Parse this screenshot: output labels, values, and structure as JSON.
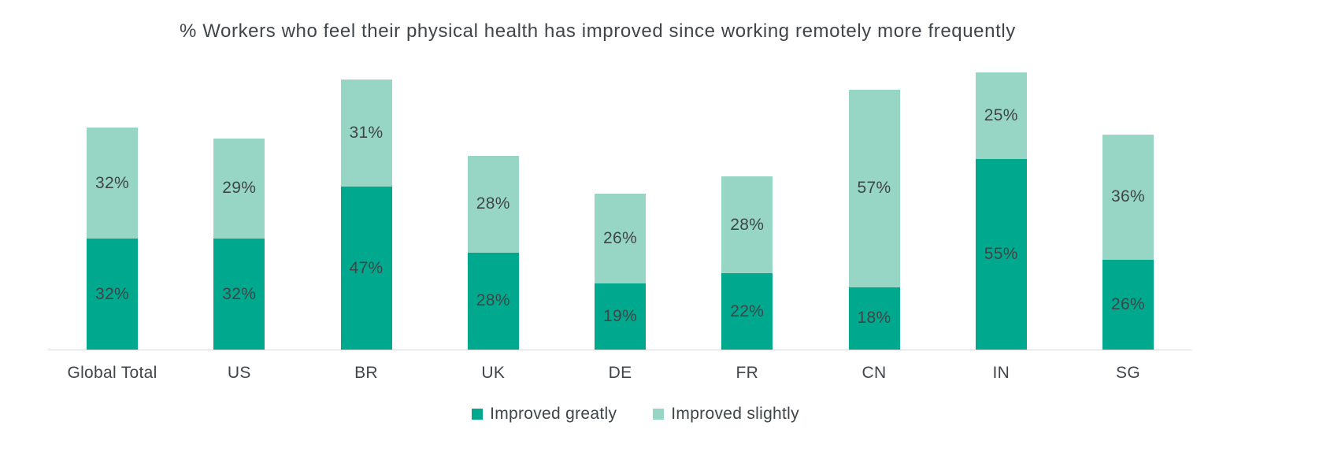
{
  "chart_data": {
    "type": "bar",
    "stacked": true,
    "title": "% Workers who feel their physical health has improved since working remotely more frequently",
    "categories": [
      "Global Total",
      "US",
      "BR",
      "UK",
      "DE",
      "FR",
      "CN",
      "IN",
      "SG"
    ],
    "series": [
      {
        "name": "Improved greatly",
        "color": "#00a88d",
        "values": [
          32,
          32,
          47,
          28,
          19,
          22,
          18,
          55,
          26
        ]
      },
      {
        "name": "Improved slightly",
        "color": "#97d6c4",
        "values": [
          32,
          29,
          31,
          28,
          26,
          28,
          57,
          25,
          36
        ]
      }
    ],
    "value_suffix": "%",
    "ylim": [
      0,
      100
    ],
    "xlabel": "",
    "ylabel": "",
    "grid": false,
    "y_axis_visible": false,
    "legend_position": "bottom",
    "label_color": "#3f4548",
    "axis_line_color": "#d9d9d9",
    "background_color": "#ffffff"
  }
}
